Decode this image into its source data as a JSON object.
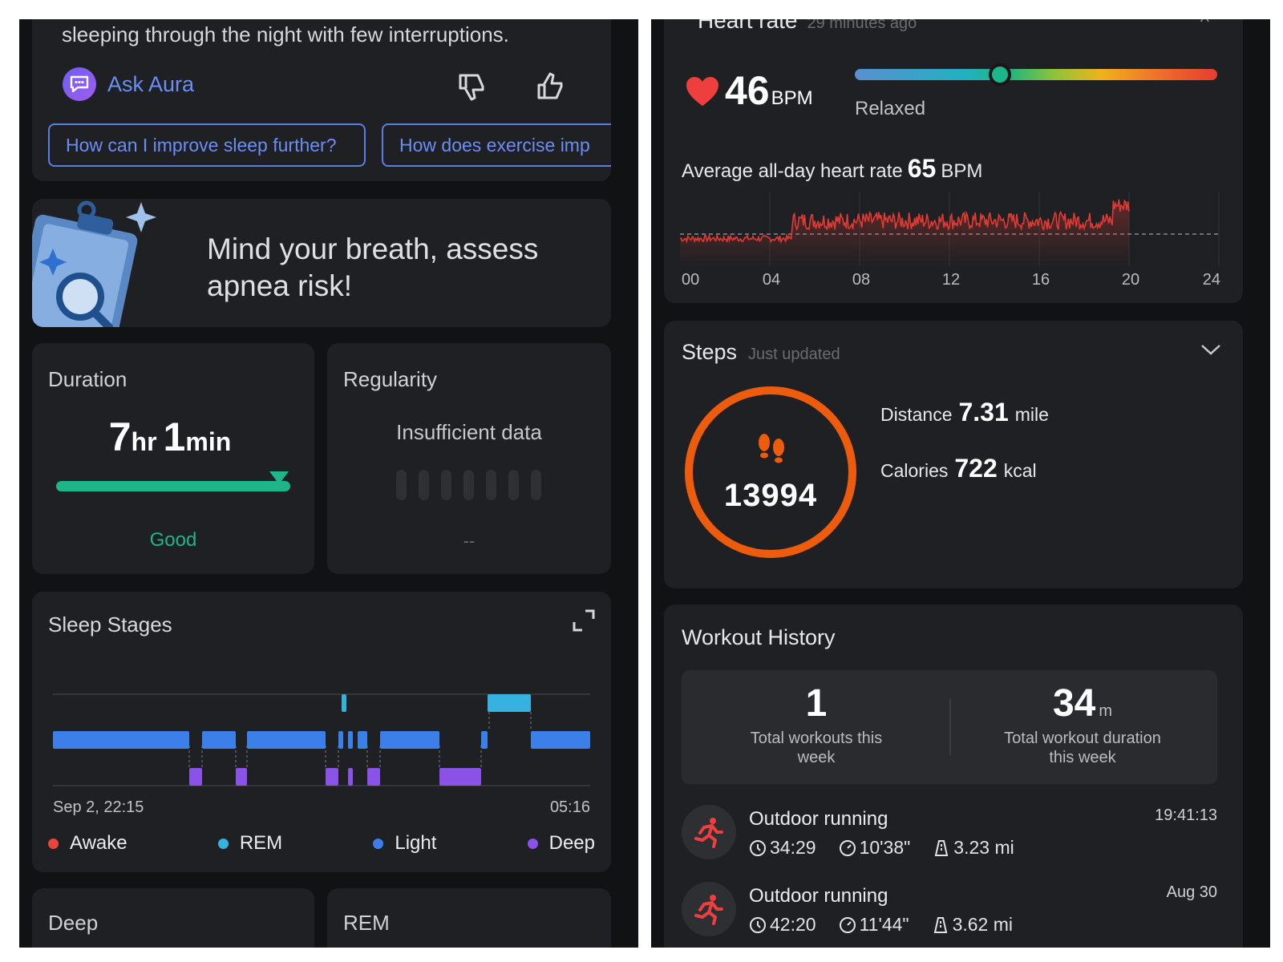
{
  "left": {
    "insight": {
      "text": "sleeping through the night with few interruptions.",
      "ask_label": "Ask Aura",
      "chips": [
        "How can I improve sleep further?",
        "How does exercise imp"
      ]
    },
    "apnea_banner": {
      "text": "Mind your breath, assess apnea risk!"
    },
    "duration": {
      "title": "Duration",
      "hours": "7",
      "hours_unit": "hr",
      "minutes": "1",
      "minutes_unit": "min",
      "status": "Good",
      "status_color": "#1fb58b"
    },
    "regularity": {
      "title": "Regularity",
      "message": "Insufficient data",
      "value": "--"
    },
    "sleep_stages": {
      "title": "Sleep Stages",
      "start": "Sep 2, 22:15",
      "end": "05:16",
      "legend": [
        {
          "label": "Awake",
          "color": "#e8453c"
        },
        {
          "label": "REM",
          "color": "#36b2e0"
        },
        {
          "label": "Light",
          "color": "#3d7fe8"
        },
        {
          "label": "Deep",
          "color": "#8a52e6"
        }
      ]
    },
    "bottom_cards": [
      "Deep",
      "REM"
    ]
  },
  "right": {
    "heart_rate": {
      "title": "Heart rate",
      "updated": "29 minutes ago",
      "value": "46",
      "unit": "BPM",
      "state": "Relaxed",
      "avg_label": "Average all-day heart rate",
      "avg_value": "65",
      "avg_unit": "BPM",
      "ticks": [
        "00",
        "04",
        "08",
        "12",
        "16",
        "20",
        "24"
      ],
      "line_color": "#e03a34"
    },
    "steps": {
      "title": "Steps",
      "updated": "Just updated",
      "count": "13994",
      "distance_label": "Distance",
      "distance_value": "7.31",
      "distance_unit": "mile",
      "calories_label": "Calories",
      "calories_value": "722",
      "calories_unit": "kcal",
      "ring_color": "#ed5b0d"
    },
    "workout_history": {
      "title": "Workout History",
      "total_workouts": "1",
      "total_workouts_label": "Total workouts this week",
      "total_duration": "34",
      "total_duration_unit": "m",
      "total_duration_label": "Total workout duration this week",
      "workouts": [
        {
          "name": "Outdoor running",
          "time": "19:41:13",
          "duration": "34:29",
          "pace": "10'38\"",
          "distance": "3.23 mi"
        },
        {
          "name": "Outdoor running",
          "time": "Aug 30",
          "duration": "42:20",
          "pace": "11'44\"",
          "distance": "3.62 mi"
        }
      ]
    }
  }
}
